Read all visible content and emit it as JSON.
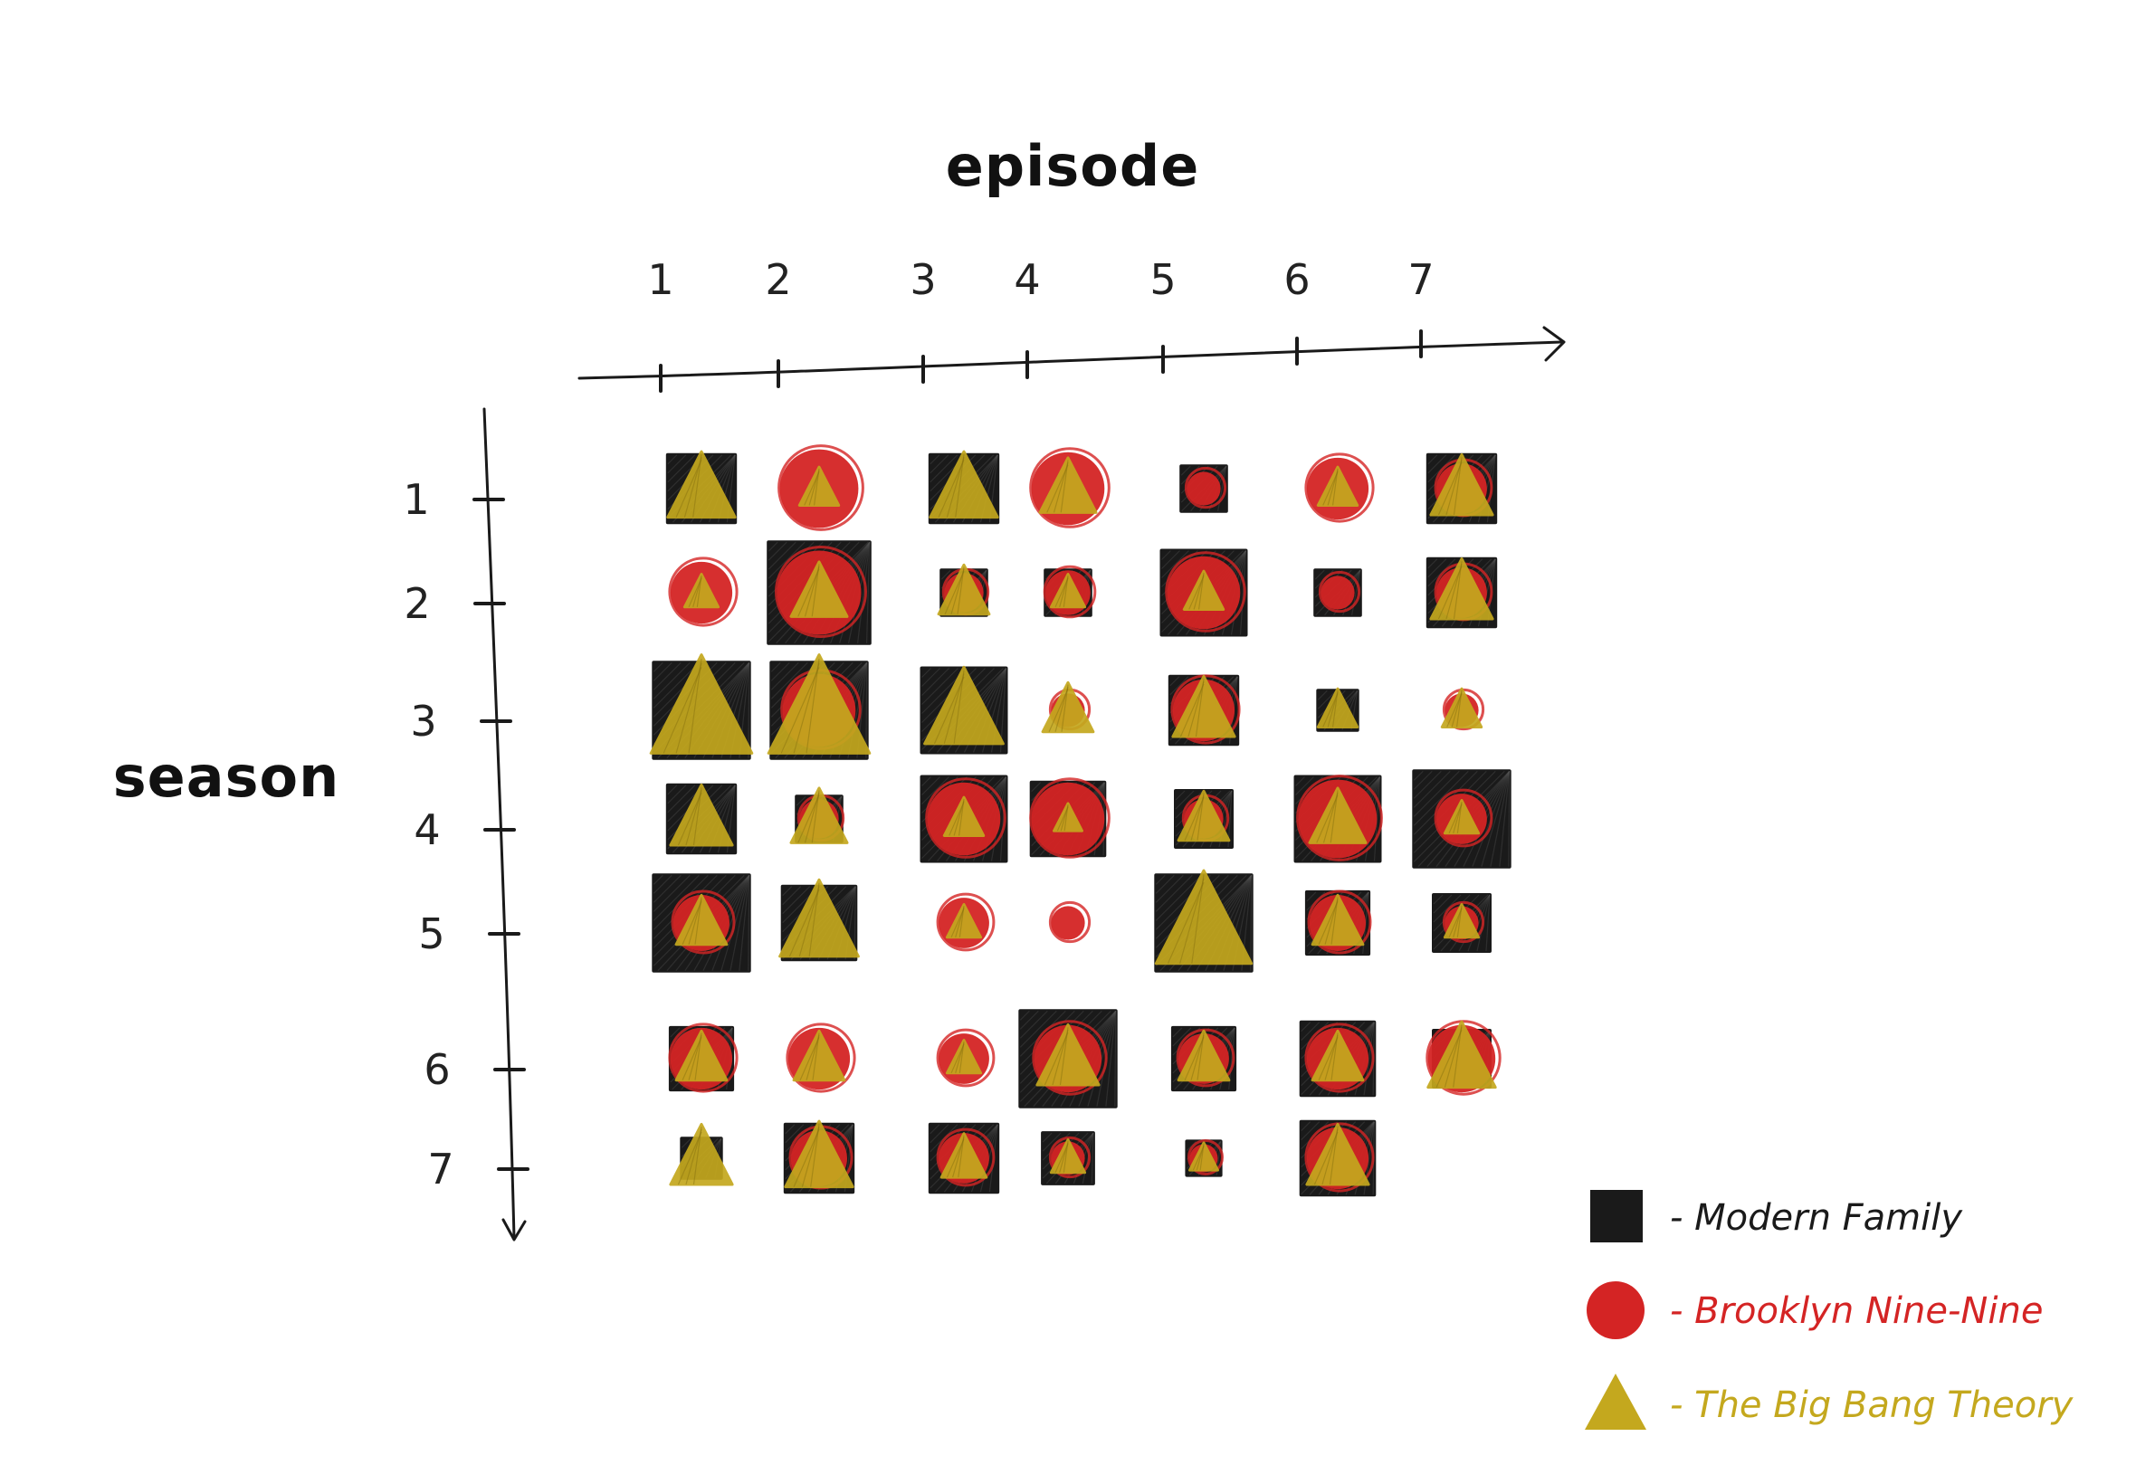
{
  "chart_data": {
    "type": "heatmap",
    "title": "",
    "xlabel": "episode",
    "ylabel": "season",
    "x_ticks": [
      "1",
      "2",
      "3",
      "4",
      "5",
      "6",
      "7"
    ],
    "y_ticks": [
      "1",
      "2",
      "3",
      "4",
      "5",
      "6",
      "7"
    ],
    "legend": {
      "placement": "bottom-right",
      "entries": [
        {
          "label": "- Modern Family",
          "shape": "square",
          "color": "#1a1a1a"
        },
        {
          "label": "- Brooklyn Nine-Nine",
          "shape": "circle",
          "color": "#d42424"
        },
        {
          "label": "- The Big Bang Theory",
          "shape": "triangle",
          "color": "#c4a81e"
        }
      ]
    },
    "encoding": "mark size shows each show's rating for the season/episode; missing mark means no episode",
    "series": [
      {
        "name": "Modern Family",
        "shape": "square",
        "color": "#1a1a1a",
        "values": [
          [
            0.6,
            null,
            0.6,
            null,
            0.4,
            null,
            0.6
          ],
          [
            null,
            0.9,
            0.4,
            0.4,
            0.75,
            0.4,
            0.6
          ],
          [
            0.85,
            0.85,
            0.75,
            null,
            0.6,
            0.35,
            null
          ],
          [
            0.6,
            0.4,
            0.75,
            0.65,
            0.5,
            0.75,
            0.85
          ],
          [
            0.85,
            0.65,
            null,
            null,
            0.85,
            0.55,
            0.5
          ],
          [
            0.55,
            null,
            null,
            0.85,
            0.55,
            0.65,
            0.5
          ],
          [
            0.35,
            0.6,
            0.6,
            0.45,
            0.3,
            0.65,
            null
          ]
        ]
      },
      {
        "name": "Brooklyn Nine-Nine",
        "shape": "circle",
        "color": "#d42424",
        "values": [
          [
            null,
            0.7,
            null,
            0.65,
            0.3,
            0.55,
            0.45
          ],
          [
            0.55,
            0.75,
            0.35,
            0.4,
            0.65,
            0.3,
            0.45
          ],
          [
            null,
            0.65,
            null,
            0.3,
            0.55,
            null,
            0.3
          ],
          [
            null,
            0.35,
            0.65,
            0.65,
            0.35,
            0.7,
            0.45
          ],
          [
            0.5,
            null,
            0.45,
            0.3,
            null,
            0.5,
            0.3
          ],
          [
            0.55,
            0.55,
            0.45,
            0.6,
            0.45,
            0.55,
            0.6
          ],
          [
            null,
            0.5,
            0.45,
            0.3,
            0.25,
            0.55,
            null
          ]
        ]
      },
      {
        "name": "The Big Bang Theory",
        "shape": "triangle",
        "color": "#c4a81e",
        "values": [
          [
            0.6,
            0.35,
            0.6,
            0.5,
            null,
            0.35,
            0.55
          ],
          [
            0.3,
            0.5,
            0.45,
            0.3,
            0.35,
            null,
            0.55
          ],
          [
            0.9,
            0.9,
            0.7,
            0.45,
            0.55,
            0.35,
            0.35
          ],
          [
            0.55,
            0.5,
            0.35,
            0.25,
            0.45,
            0.5,
            0.3
          ],
          [
            0.45,
            0.7,
            0.3,
            null,
            0.85,
            0.45,
            0.3
          ],
          [
            0.45,
            0.45,
            0.3,
            0.55,
            0.45,
            0.45,
            0.6
          ],
          [
            0.55,
            0.6,
            0.4,
            0.3,
            0.25,
            0.55,
            null
          ]
        ]
      }
    ]
  }
}
